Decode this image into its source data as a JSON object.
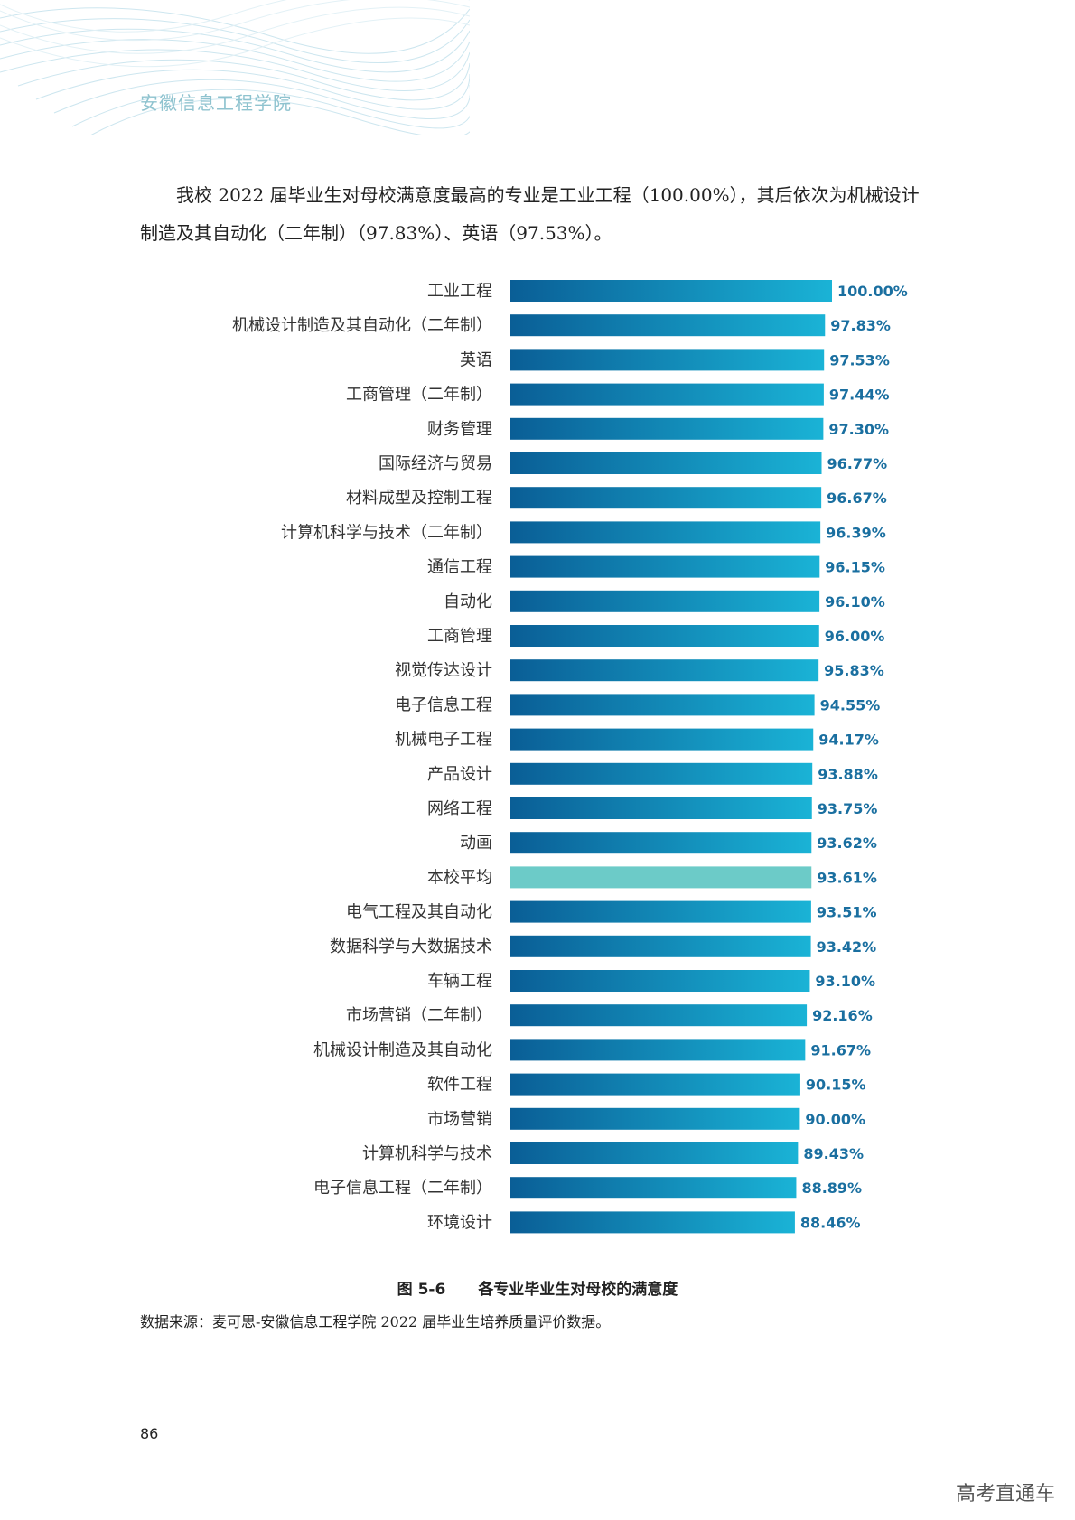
{
  "header": {
    "institution": "安徽信息工程学院"
  },
  "paragraph": "我校 2022 届毕业生对母校满意度最高的专业是工业工程（100.00%），其后依次为机械设计制造及其自动化（二年制）（97.83%）、英语（97.53%）。",
  "figure": {
    "number": "图 5-6",
    "title": "各专业毕业生对母校的满意度"
  },
  "source": "数据来源：麦可思-安徽信息工程学院 2022 届毕业生培养质量评价数据。",
  "page_number": "86",
  "watermark": "高考直通车",
  "colors": {
    "bar_start": "#0a5e96",
    "bar_end": "#1ab3d6",
    "highlight": "#6ccbc8",
    "value_text": "#1a6fa0"
  },
  "chart_data": {
    "type": "bar",
    "orientation": "horizontal",
    "categories": [
      "工业工程",
      "机械设计制造及其自动化（二年制）",
      "英语",
      "工商管理（二年制）",
      "财务管理",
      "国际经济与贸易",
      "材料成型及控制工程",
      "计算机科学与技术（二年制）",
      "通信工程",
      "自动化",
      "工商管理",
      "视觉传达设计",
      "电子信息工程",
      "机械电子工程",
      "产品设计",
      "网络工程",
      "动画",
      "本校平均",
      "电气工程及其自动化",
      "数据科学与大数据技术",
      "车辆工程",
      "市场营销（二年制）",
      "机械设计制造及其自动化",
      "软件工程",
      "市场营销",
      "计算机科学与技术",
      "电子信息工程（二年制）",
      "环境设计"
    ],
    "values": [
      100.0,
      97.83,
      97.53,
      97.44,
      97.3,
      96.77,
      96.67,
      96.39,
      96.15,
      96.1,
      96.0,
      95.83,
      94.55,
      94.17,
      93.88,
      93.75,
      93.62,
      93.61,
      93.51,
      93.42,
      93.1,
      92.16,
      91.67,
      90.15,
      90.0,
      89.43,
      88.89,
      88.46
    ],
    "value_labels": [
      "100.00%",
      "97.83%",
      "97.53%",
      "97.44%",
      "97.30%",
      "96.77%",
      "96.67%",
      "96.39%",
      "96.15%",
      "96.10%",
      "96.00%",
      "95.83%",
      "94.55%",
      "94.17%",
      "93.88%",
      "93.75%",
      "93.62%",
      "93.61%",
      "93.51%",
      "93.42%",
      "93.10%",
      "92.16%",
      "91.67%",
      "90.15%",
      "90.00%",
      "89.43%",
      "88.89%",
      "88.46%"
    ],
    "highlight_category": "本校平均",
    "xlim": [
      0,
      100
    ],
    "grid": false,
    "legend": "none"
  }
}
